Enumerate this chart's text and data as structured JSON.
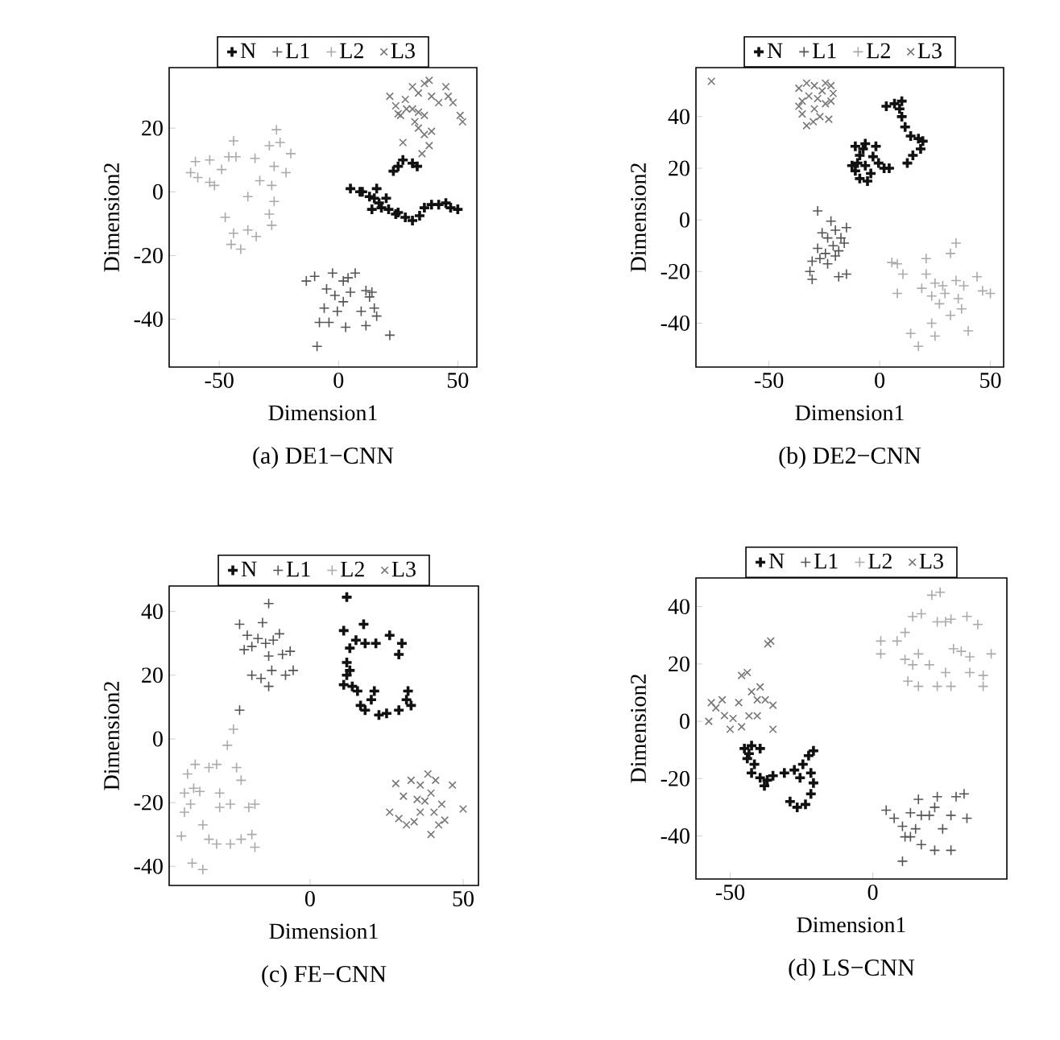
{
  "chart_data": [
    {
      "type": "scatter",
      "title": "(a) DE1−CNN",
      "xlabel": "Dimension1",
      "ylabel": "Dimension2",
      "xlim": [
        -71,
        58
      ],
      "ylim": [
        -55,
        39
      ],
      "xticks": [
        -50,
        0,
        50
      ],
      "yticks": [
        -40,
        -20,
        0,
        20
      ],
      "legend": "top",
      "series": [
        {
          "name": "N",
          "color": "#111111",
          "marker": "plus",
          "x": [
            10,
            16,
            15,
            14,
            18,
            20,
            21,
            24,
            28,
            31,
            34,
            36,
            39,
            42,
            45,
            47,
            50,
            23,
            25,
            27,
            31,
            33,
            9,
            17,
            25,
            13,
            5
          ],
          "values": [
            0,
            1,
            -2,
            -5.5,
            -5,
            -2,
            -5.5,
            -7,
            -8,
            -9,
            -7.5,
            -5,
            -4,
            -4,
            -3.5,
            -5,
            -5.5,
            6.5,
            8,
            10,
            9,
            8,
            0,
            -3.5,
            -6.5,
            -1.5,
            1
          ]
        },
        {
          "name": "L1",
          "color": "#555555",
          "marker": "plus",
          "x": [
            -13.5,
            -10,
            -2.5,
            2,
            4,
            7,
            11.5,
            13,
            15,
            16,
            11.5,
            21.5,
            -1.5,
            -0.5,
            -4,
            -8,
            -9,
            3,
            2,
            5,
            -5,
            9.5,
            14,
            -6
          ],
          "values": [
            -28,
            -26.5,
            -25.5,
            -28,
            -27,
            -25.5,
            -31,
            -33,
            -36.5,
            -39,
            -42,
            -45,
            -32.5,
            -37.5,
            -41,
            -41,
            -48.5,
            -42.5,
            -34.5,
            -31.5,
            -30.5,
            -37.5,
            -31.5,
            -36.5
          ]
        },
        {
          "name": "L2",
          "color": "#aaaaaa",
          "marker": "plus",
          "x": [
            -62,
            -60,
            -59,
            -54,
            -52,
            -49,
            -46,
            -44,
            -43,
            -38,
            -35,
            -33,
            -44,
            -45,
            -41,
            -38,
            -34.5,
            -29,
            -28,
            -27,
            -28,
            -27,
            -26,
            -24.5,
            -22,
            -20,
            -29,
            -47.5,
            -54
          ],
          "values": [
            6,
            9.5,
            4.5,
            10,
            2,
            7,
            11,
            16,
            11,
            -1.5,
            10.5,
            3.5,
            -13,
            -16.5,
            -18,
            -12,
            -14,
            -7,
            -10.5,
            -3,
            2,
            8,
            19.5,
            15.5,
            6,
            12,
            14.5,
            -8,
            3
          ]
        },
        {
          "name": "L3",
          "color": "#777777",
          "marker": "cross",
          "x": [
            21.5,
            24,
            25,
            28,
            31,
            33.5,
            36,
            38,
            39,
            33.5,
            36,
            33.5,
            36,
            39,
            38,
            35,
            27,
            28.5,
            45,
            46,
            48,
            51,
            52,
            42,
            31,
            32,
            26
          ],
          "values": [
            30,
            27,
            24.5,
            29,
            33,
            31,
            34,
            35,
            30,
            25,
            24,
            20,
            18,
            19,
            14.5,
            12,
            15.5,
            26,
            33,
            30,
            28,
            24,
            22,
            28,
            26,
            22,
            24
          ]
        }
      ]
    },
    {
      "type": "scatter",
      "title": "(b) DE2−CNN",
      "xlabel": "Dimension1",
      "ylabel": "Dimension2",
      "xlim": [
        -83,
        56
      ],
      "ylim": [
        -57,
        59
      ],
      "xticks": [
        -50,
        0,
        50
      ],
      "yticks": [
        -40,
        -20,
        0,
        20,
        40
      ],
      "legend": "top",
      "series": [
        {
          "name": "N",
          "color": "#111111",
          "marker": "plus",
          "x": [
            -11,
            -9,
            -10,
            -11,
            -9,
            -5.5,
            -4,
            -6.5,
            -3,
            -0.5,
            2,
            4.3,
            -1.7,
            -6.5,
            3,
            6.7,
            10,
            9,
            10,
            11.5,
            14,
            17.5,
            19.5,
            18.5,
            15,
            12.5,
            -7.5,
            -12.5
          ],
          "values": [
            28.5,
            25,
            22,
            19,
            16,
            15,
            18,
            21,
            24.5,
            22,
            20,
            20,
            28.5,
            29.5,
            44,
            45,
            46,
            43,
            40,
            36,
            32.5,
            31.5,
            30.5,
            27.5,
            25,
            22,
            27.5,
            21
          ]
        },
        {
          "name": "L1",
          "color": "#555555",
          "marker": "plus",
          "x": [
            -28,
            -22,
            -26,
            -23.5,
            -20,
            -17.5,
            -15,
            -28,
            -24.5,
            -21,
            -18.5,
            -16,
            -30.5,
            -27,
            -31.5,
            -30.5,
            -18.5,
            -15,
            -23.5,
            -20
          ],
          "values": [
            3.5,
            -0.5,
            -5,
            -7,
            -4,
            -7,
            -3,
            -11,
            -13,
            -10,
            -12,
            -9,
            -16,
            -15,
            -20,
            -23,
            -22,
            -21,
            -17,
            -14
          ]
        },
        {
          "name": "L2",
          "color": "#aaaaaa",
          "marker": "plus",
          "x": [
            5.5,
            8,
            10.5,
            8,
            21,
            21,
            25,
            32,
            34.5,
            19,
            23.5,
            28.5,
            34.5,
            38,
            44,
            46.5,
            50,
            27,
            32,
            37,
            40,
            23.5,
            14,
            17.5,
            25,
            35.5,
            29.5
          ],
          "values": [
            -16.5,
            -17,
            -21,
            -28.5,
            -15,
            -21,
            -24.5,
            -13,
            -9,
            -26.5,
            -29.5,
            -25.5,
            -23.5,
            -25.5,
            -22,
            -27.5,
            -28.5,
            -32.5,
            -37,
            -34.5,
            -43,
            -40,
            -44,
            -49,
            -45,
            -30.5,
            -28.5
          ]
        },
        {
          "name": "L3",
          "color": "#777777",
          "marker": "cross",
          "x": [
            -76,
            -36.5,
            -33,
            -29.5,
            -24.5,
            -22,
            -35,
            -32,
            -28,
            -24.5,
            -22,
            -35,
            -33,
            -29.5,
            -27,
            -23,
            -30,
            -36.5,
            -26,
            -21
          ],
          "values": [
            53.7,
            51,
            53,
            52,
            53,
            52,
            46,
            48,
            47,
            45,
            46,
            41,
            36.5,
            43,
            40,
            39,
            38,
            44,
            50,
            49
          ]
        }
      ]
    },
    {
      "type": "scatter",
      "title": "(c) FE−CNN",
      "xlabel": "Dimension1",
      "ylabel": "Dimension2",
      "xlim": [
        -46,
        55
      ],
      "ylim": [
        -46,
        48
      ],
      "xticks": [
        0,
        50
      ],
      "yticks": [
        -40,
        -20,
        0,
        20,
        40
      ],
      "legend": "top",
      "series": [
        {
          "name": "N",
          "color": "#111111",
          "marker": "plus",
          "x": [
            12,
            11,
            13,
            12,
            12,
            11,
            13.8,
            15.5,
            16.5,
            20,
            21,
            22.5,
            25,
            29,
            31.5,
            33,
            29,
            30,
            26,
            21.5,
            17.5,
            15,
            18,
            32,
            13,
            18
          ],
          "values": [
            44.5,
            34,
            28.5,
            24,
            20,
            17,
            16.5,
            15,
            10.5,
            12.3,
            15,
            7.5,
            8,
            9,
            12.3,
            10.5,
            26.5,
            30,
            32.5,
            30,
            36,
            31,
            30,
            15,
            21.5,
            9
          ]
        },
        {
          "name": "L1",
          "color": "#555555",
          "marker": "plus",
          "x": [
            -23,
            -20.5,
            -19,
            -21.5,
            -17,
            -15.5,
            -13.5,
            -14.5,
            -13.5,
            -12,
            -10,
            -9,
            -6.5,
            -5.5,
            -8,
            -13.5,
            -19,
            -16,
            -12.5,
            -23
          ],
          "values": [
            36,
            32.5,
            29,
            28,
            31.5,
            36.5,
            42.5,
            30,
            26,
            31,
            33,
            26.5,
            27.5,
            21.5,
            20,
            16.5,
            20,
            19,
            21.5,
            9
          ]
        },
        {
          "name": "L2",
          "color": "#aaaaaa",
          "marker": "plus",
          "x": [
            -25,
            -27,
            -37.5,
            -40,
            -38,
            -39,
            -41,
            -42,
            -36,
            -33,
            -30.5,
            -29.5,
            -26,
            -29.5,
            -35,
            -33,
            -30.5,
            -26,
            -22.5,
            -19,
            -18,
            -18,
            -20,
            -24,
            -22.5,
            -38.5,
            -35,
            -41
          ],
          "values": [
            3,
            -2,
            -8,
            -11,
            -15.5,
            -20.5,
            -23,
            -30.5,
            -16.5,
            -9,
            -8,
            -17,
            -20.5,
            -21.5,
            -27,
            -31.5,
            -33,
            -33,
            -31.5,
            -30,
            -34,
            -20.5,
            -21.5,
            -9,
            -13,
            -39,
            -41,
            -17
          ]
        },
        {
          "name": "L3",
          "color": "#777777",
          "marker": "cross",
          "x": [
            28,
            30.5,
            33,
            36,
            38.5,
            41,
            46.5,
            26,
            29,
            31.5,
            36,
            37.5,
            39.5,
            40.5,
            43,
            44,
            39.5,
            42,
            50,
            35,
            34
          ],
          "values": [
            -14,
            -18,
            -13,
            -14.5,
            -11,
            -13,
            -14.5,
            -23,
            -25,
            -27,
            -23,
            -19.5,
            -17,
            -23,
            -20.5,
            -25.5,
            -30,
            -27,
            -22,
            -19,
            -26
          ]
        }
      ]
    },
    {
      "type": "scatter",
      "title": "(d) LS−CNN",
      "xlabel": "Dimension1",
      "ylabel": "Dimension2",
      "xlim": [
        -62,
        47
      ],
      "ylim": [
        -55,
        50
      ],
      "xticks": [
        -50,
        0
      ],
      "yticks": [
        -40,
        -20,
        0,
        20,
        40
      ],
      "legend": "top",
      "series": [
        {
          "name": "N",
          "color": "#111111",
          "marker": "plus",
          "x": [
            -45,
            -42.5,
            -39.5,
            -44,
            -41.5,
            -42.5,
            -39.5,
            -37,
            -35,
            -31,
            -27.5,
            -24.5,
            -22.5,
            -20.8,
            -21.7,
            -20.8,
            -21.7,
            -23.6,
            -26.5,
            -29,
            -38,
            -25.5,
            -43.4
          ],
          "values": [
            -9.5,
            -8.5,
            -9.5,
            -13,
            -15,
            -18,
            -19.7,
            -20.5,
            -19,
            -18,
            -17,
            -15,
            -12,
            -10.3,
            -18,
            -21.5,
            -25.3,
            -29,
            -30,
            -28,
            -22.5,
            -19.7,
            -11.3
          ]
        },
        {
          "name": "L1",
          "color": "#555555",
          "marker": "plus",
          "x": [
            4.7,
            7.5,
            10.4,
            10.4,
            11.3,
            13.2,
            16,
            17,
            15,
            17,
            21.7,
            24.5,
            27.4,
            29.2,
            32,
            33,
            22.6,
            21.7,
            19.8,
            13.2,
            27.4
          ],
          "values": [
            -31,
            -33.8,
            -36.6,
            -48.8,
            -40.3,
            -31.9,
            -27.2,
            -32.8,
            -37.5,
            -43,
            -45,
            -37.5,
            -32.8,
            -26.3,
            -25.3,
            -33.8,
            -26.3,
            -30,
            -32.8,
            -40.3,
            -45
          ]
        },
        {
          "name": "L2",
          "color": "#aaaaaa",
          "marker": "plus",
          "x": [
            2.8,
            2.8,
            8.5,
            11.3,
            14,
            17,
            20.7,
            23.6,
            22.6,
            25.5,
            11.3,
            14,
            12.3,
            16,
            19.8,
            22.6,
            25.5,
            27.4,
            28.3,
            31,
            34,
            34,
            33,
            36.8,
            38.7,
            38.7,
            41.5,
            27.4,
            16
          ],
          "values": [
            28,
            23.5,
            28,
            31,
            36.5,
            37.5,
            44,
            45,
            34.7,
            34.7,
            21.6,
            19.7,
            14,
            12.2,
            19.7,
            12.2,
            17,
            12.2,
            25.3,
            24.4,
            22.5,
            17,
            36.6,
            33.8,
            16,
            12.2,
            23.5,
            35.6,
            23.5
          ]
        },
        {
          "name": "L3",
          "color": "#777777",
          "marker": "cross",
          "x": [
            -57.5,
            -56.6,
            -55,
            -52,
            -49,
            -47,
            -46,
            -44,
            -42.5,
            -40.5,
            -39.5,
            -37.7,
            -36.8,
            -35.8,
            -35,
            -35,
            -40.5,
            -46,
            -50,
            -43.4,
            -52.8
          ],
          "values": [
            0,
            6.5,
            4.7,
            2,
            1,
            6.5,
            16,
            17,
            10.3,
            7.5,
            12,
            7.5,
            27,
            28,
            5.6,
            -2.8,
            1.9,
            -1.9,
            -2.8,
            1.9,
            7.5
          ]
        }
      ]
    }
  ]
}
